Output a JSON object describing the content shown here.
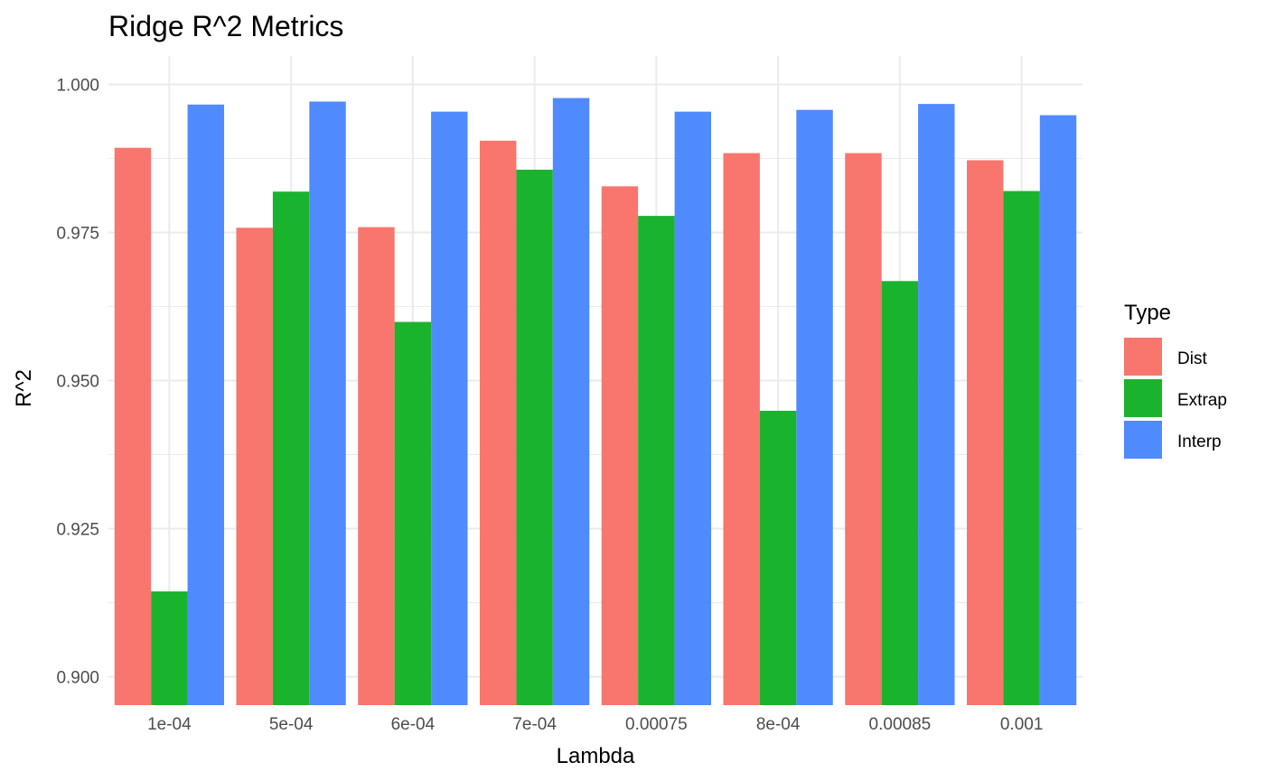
{
  "chart_data": {
    "type": "bar",
    "title": "Ridge R^2 Metrics",
    "xlabel": "Lambda",
    "ylabel": "R^2",
    "categories": [
      "1e-04",
      "5e-04",
      "6e-04",
      "7e-04",
      "0.00075",
      "8e-04",
      "0.00085",
      "0.001"
    ],
    "series": [
      {
        "name": "Dist",
        "color": "#F8766D",
        "values": [
          0.9893,
          0.9758,
          0.9759,
          0.9905,
          0.9828,
          0.9884,
          0.9884,
          0.9872
        ]
      },
      {
        "name": "Extrap",
        "color": "#1AB32D",
        "values": [
          0.9144,
          0.9819,
          0.9599,
          0.9856,
          0.9778,
          0.9449,
          0.9668,
          0.982
        ]
      },
      {
        "name": "Interp",
        "color": "#508AFF",
        "values": [
          0.9966,
          0.9971,
          0.9954,
          0.9977,
          0.9954,
          0.9957,
          0.9967,
          0.9948
        ]
      }
    ],
    "yticks": [
      "0.900",
      "0.925",
      "0.950",
      "0.975",
      "1.000"
    ],
    "ylim": [
      0.8952,
      1.0048
    ],
    "grid": true,
    "legend": {
      "title": "Type",
      "position": "right"
    }
  }
}
